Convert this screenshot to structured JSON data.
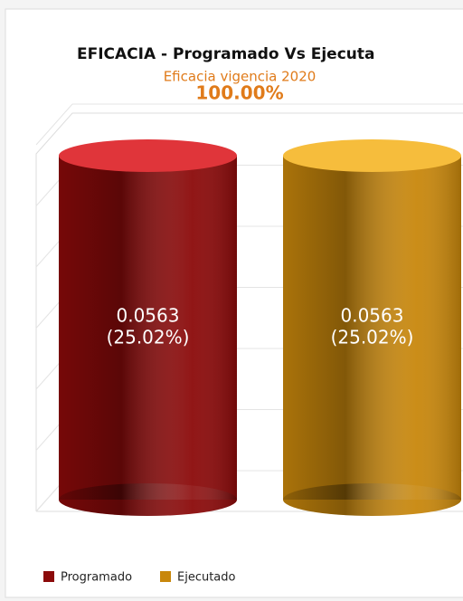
{
  "chart_data": {
    "type": "bar",
    "title": "EFICACIA - Programado Vs Ejecuta",
    "subtitle": "Eficacia vigencia 2020",
    "headline": "100.00%",
    "categories": [
      "Programado",
      "Ejecutado"
    ],
    "values": [
      0.0563,
      0.0563
    ],
    "percent_labels": [
      "(25.02%)",
      "(25.02%)"
    ],
    "colors": [
      "#8b0a0a",
      "#c8870c"
    ],
    "top_colors": [
      "#e0353a",
      "#f6bd3c"
    ],
    "ylim": [
      0,
      0.064
    ],
    "yticks": [
      0,
      0.01,
      0.02,
      0.03,
      0.04,
      0.05,
      0.06
    ],
    "grid": true
  }
}
